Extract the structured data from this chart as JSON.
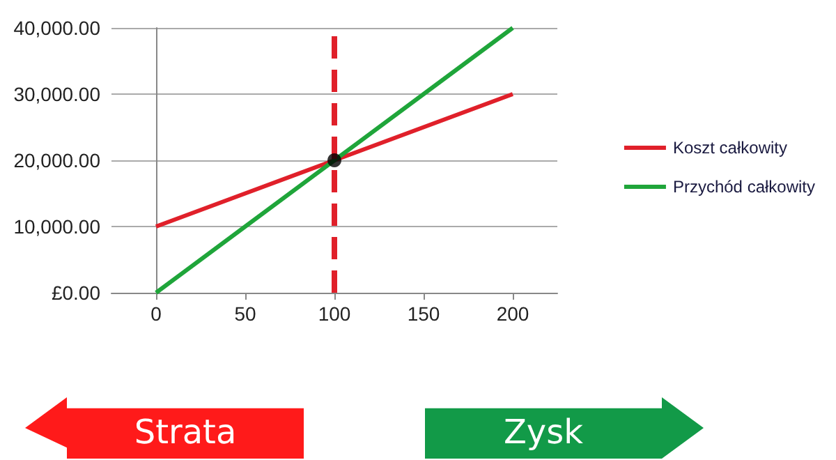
{
  "chart_data": {
    "type": "line",
    "x": [
      0,
      50,
      100,
      150,
      200
    ],
    "series": [
      {
        "name": "Koszt całkowity",
        "color": "#e0202a",
        "values": [
          10000,
          15000,
          20000,
          25000,
          30000
        ]
      },
      {
        "name": "Przychód całkowity",
        "color": "#1fa53a",
        "values": [
          0,
          10000,
          20000,
          30000,
          40000
        ]
      },
      {
        "type": "scatter",
        "color": "#000000",
        "marker": "circle",
        "x": [
          100
        ],
        "values": [
          20000
        ]
      }
    ],
    "xlim": [
      -25,
      225
    ],
    "xticks": [
      0,
      50,
      100,
      150,
      200
    ],
    "ylim": [
      0,
      40000
    ],
    "yticks": [
      {
        "value": 0,
        "label": "£0.00"
      },
      {
        "value": 10000,
        "label": "10,000.00"
      },
      {
        "value": 20000,
        "label": "20,000.00"
      },
      {
        "value": 30000,
        "label": "30,000.00"
      },
      {
        "value": 40000,
        "label": "40,000.00"
      }
    ],
    "grid": "y",
    "legend": "right",
    "line_style": "solid",
    "ref_lines": [
      {
        "axis": "x",
        "value": 100,
        "color": "#e0202a",
        "line_style": "dashed"
      }
    ],
    "annotations": [
      "Strata",
      "Zysk"
    ]
  }
}
